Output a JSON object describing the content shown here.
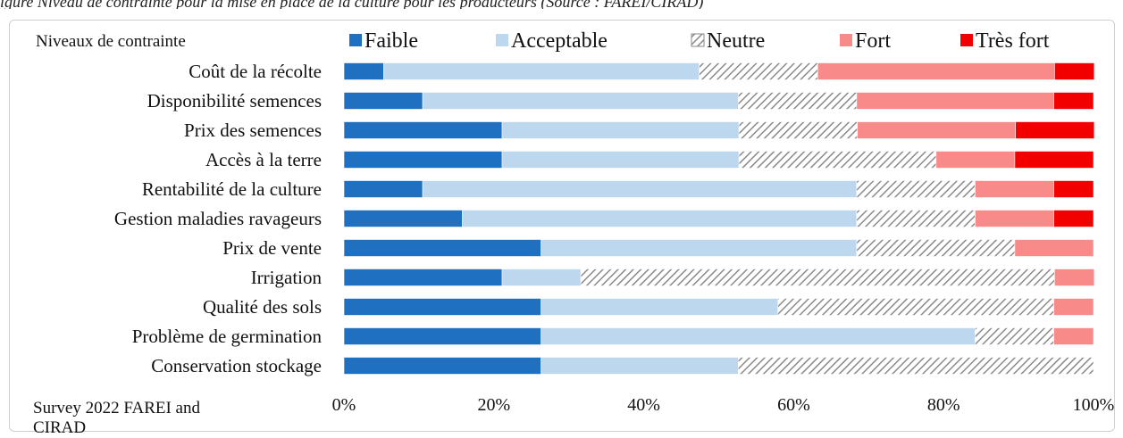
{
  "caption": "igure  Niveau de contrainte pour la mise en place de la culture pour les producteurs (Source : FAREI/CIRAD)",
  "source_note": "Survey 2022 FAREI and CIRAD",
  "colors": {
    "Faible": "#1f70c1",
    "Acceptable": "#bdd7ee",
    "Neutre": "#9e9e9e",
    "Fort": "#f98a8a",
    "Très fort": "#f20000",
    "hatch_bg": "#ffffff"
  },
  "chart_data": {
    "type": "bar",
    "orientation": "horizontal",
    "stacked": true,
    "legend_title": "Niveaux de  contrainte",
    "legend_position": "top",
    "categories": [
      "Coût de la récolte",
      "Disponibilité semences",
      "Prix des semences",
      "Accès à la terre",
      "Rentabilité de la culture",
      "Gestion maladies ravageurs",
      "Prix de vente",
      "Irrigation",
      "Qualité des sols",
      "Problème de germination",
      "Conservation stockage"
    ],
    "series": [
      {
        "name": "Faible",
        "pattern": "solid",
        "values": [
          5.3,
          10.5,
          21.1,
          21.1,
          10.5,
          15.8,
          26.3,
          21.1,
          26.3,
          26.3,
          26.3
        ]
      },
      {
        "name": "Acceptable",
        "pattern": "solid",
        "values": [
          42.1,
          42.1,
          31.6,
          31.6,
          57.9,
          52.6,
          42.1,
          10.5,
          31.6,
          57.9,
          26.3
        ]
      },
      {
        "name": "Neutre",
        "pattern": "hatch",
        "values": [
          15.8,
          15.8,
          15.8,
          26.3,
          15.8,
          15.8,
          21.1,
          63.2,
          36.8,
          10.5,
          47.4
        ]
      },
      {
        "name": "Fort",
        "pattern": "solid",
        "values": [
          31.6,
          26.3,
          21.1,
          10.5,
          10.5,
          10.5,
          10.5,
          5.3,
          5.3,
          5.3,
          0
        ]
      },
      {
        "name": "Très fort",
        "pattern": "solid",
        "values": [
          5.3,
          5.3,
          10.5,
          10.5,
          5.3,
          5.3,
          0,
          0,
          0,
          0,
          0
        ]
      }
    ],
    "xlim": [
      0,
      100
    ],
    "x_ticks": [
      0,
      20,
      40,
      60,
      80,
      100
    ],
    "x_tick_labels": [
      "0%",
      "20%",
      "40%",
      "60%",
      "80%",
      "100%"
    ],
    "grid": false
  }
}
